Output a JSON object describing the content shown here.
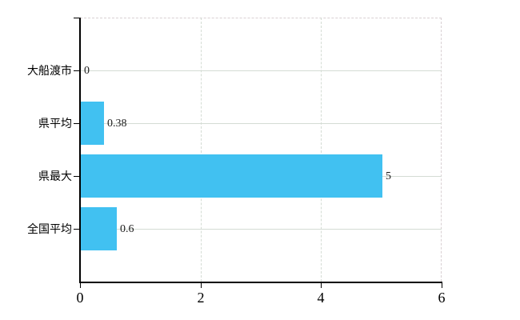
{
  "chart_data": {
    "type": "bar",
    "orientation": "horizontal",
    "title": "",
    "xlabel": "",
    "ylabel": "",
    "legend": false,
    "grid": true,
    "categories": [
      "大船渡市",
      "県平均",
      "県最大",
      "全国平均"
    ],
    "values": [
      0,
      0.38,
      5,
      0.6
    ],
    "value_labels": [
      "0",
      "0.38",
      "5",
      "0.6"
    ],
    "x_ticks": [
      0,
      2,
      4,
      6
    ],
    "x_tick_labels": [
      "0",
      "2",
      "4",
      "6"
    ],
    "xlim": [
      0,
      6
    ],
    "colors": {
      "bar": "#41C1F1",
      "h_gridline": "#d4dcd4",
      "v_gridline": "#d4dcd4",
      "plot_border": "#d8cfd2",
      "axis": "#000000",
      "category_text": "#000000",
      "value_text": "#1a1a1a",
      "tick_text": "#000000",
      "background": "#ffffff"
    }
  }
}
